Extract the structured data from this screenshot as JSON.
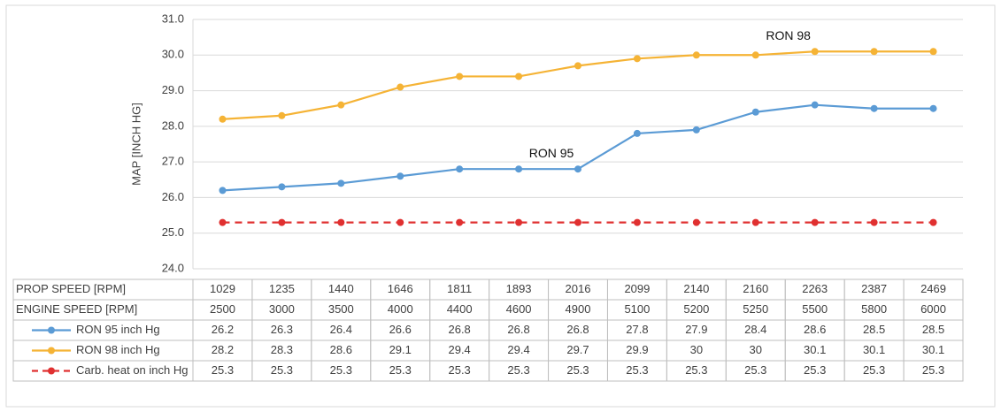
{
  "chart_data": {
    "type": "line",
    "y_label": "MAP [INCH HG]",
    "ylim": [
      24,
      31
    ],
    "yticks": [
      {
        "value": 24,
        "label": "24.0"
      },
      {
        "value": 25,
        "label": "25.0"
      },
      {
        "value": 26,
        "label": "26.0"
      },
      {
        "value": 27,
        "label": "27.0"
      },
      {
        "value": 28,
        "label": "28.0"
      },
      {
        "value": 29,
        "label": "29.0"
      },
      {
        "value": 30,
        "label": "30.0"
      },
      {
        "value": 31,
        "label": "31.0"
      }
    ],
    "grid": true,
    "table_rows": [
      {
        "label": "PROP SPEED [RPM]",
        "values": [
          1029,
          1235,
          1440,
          1646,
          1811,
          1893,
          2016,
          2099,
          2140,
          2160,
          2263,
          2387,
          2469
        ]
      },
      {
        "label": "ENGINE SPEED [RPM]",
        "values": [
          2500,
          3000,
          3500,
          4000,
          4400,
          4600,
          4900,
          5100,
          5200,
          5250,
          5500,
          5800,
          6000
        ]
      }
    ],
    "series": [
      {
        "name": "RON 95 inch Hg",
        "color": "#5b9bd5",
        "style": "solid",
        "values": [
          26.2,
          26.3,
          26.4,
          26.6,
          26.8,
          26.8,
          26.8,
          27.8,
          27.9,
          28.4,
          28.6,
          28.5,
          28.5
        ]
      },
      {
        "name": "RON 98 inch Hg",
        "color": "#f5b335",
        "style": "solid",
        "values": [
          28.2,
          28.3,
          28.6,
          29.1,
          29.4,
          29.4,
          29.7,
          29.9,
          30,
          30,
          30.1,
          30.1,
          30.1
        ]
      },
      {
        "name": "Carb. heat on inch Hg",
        "color": "#e03030",
        "style": "dashed",
        "values": [
          25.3,
          25.3,
          25.3,
          25.3,
          25.3,
          25.3,
          25.3,
          25.3,
          25.3,
          25.3,
          25.3,
          25.3,
          25.3
        ]
      }
    ],
    "annotations": [
      {
        "text": "RON 95",
        "index": 6,
        "series": 0
      },
      {
        "text": "RON 98",
        "index": 10,
        "series": 1
      }
    ]
  }
}
